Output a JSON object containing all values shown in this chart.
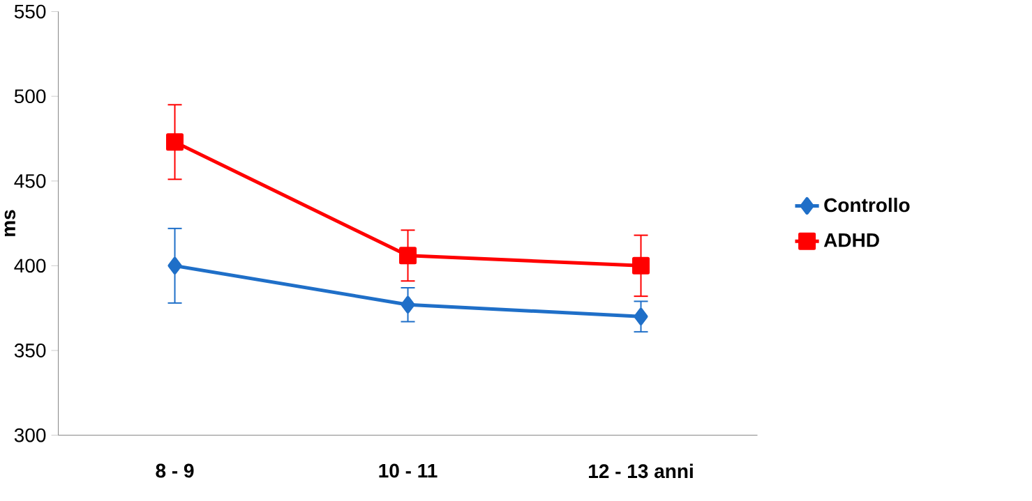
{
  "chart_data": {
    "type": "line",
    "ylabel": "ms",
    "categories": [
      "8 - 9",
      "10 - 11",
      "12 - 13 anni"
    ],
    "series": [
      {
        "name": "Controllo",
        "color": "#1f6fc8",
        "marker": "diamond",
        "values": [
          400,
          377,
          370
        ],
        "errors": [
          22,
          10,
          9
        ]
      },
      {
        "name": "ADHD",
        "color": "#ff0000",
        "marker": "square",
        "values": [
          473,
          406,
          400
        ],
        "errors": [
          22,
          15,
          18
        ]
      }
    ],
    "ylim": [
      300,
      550
    ],
    "yticks": [
      300,
      350,
      400,
      450,
      500,
      550
    ],
    "grid": false,
    "legend": "right"
  }
}
